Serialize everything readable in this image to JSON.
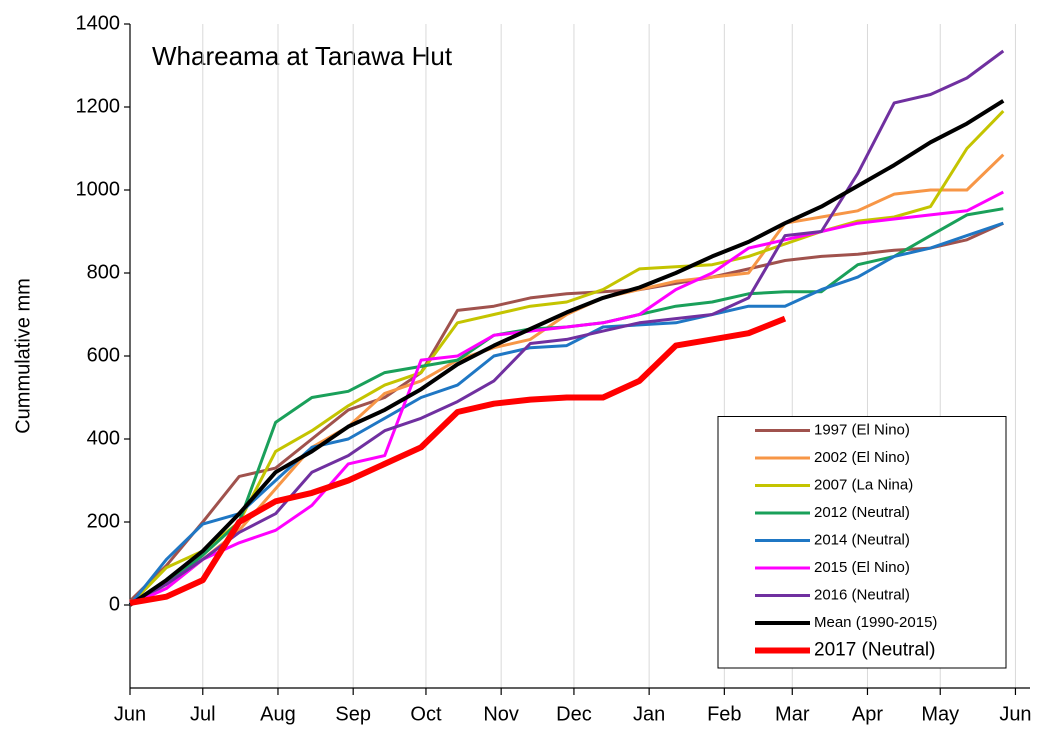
{
  "chart_data": {
    "type": "line",
    "title": "Whareama at Tanawa Hut",
    "y_label": "Cummulative mm",
    "x": [
      0,
      15,
      30,
      45,
      60,
      75,
      90,
      105,
      120,
      135,
      150,
      165,
      180,
      195,
      210,
      225,
      240,
      255,
      270,
      285,
      300,
      315,
      330,
      345,
      360
    ],
    "xlim": [
      0,
      371
    ],
    "xticks": [
      {
        "value": 0,
        "label": "Jun"
      },
      {
        "value": 30,
        "label": "Jul"
      },
      {
        "value": 61,
        "label": "Aug"
      },
      {
        "value": 92,
        "label": "Sep"
      },
      {
        "value": 122,
        "label": "Oct"
      },
      {
        "value": 153,
        "label": "Nov"
      },
      {
        "value": 183,
        "label": "Dec"
      },
      {
        "value": 214,
        "label": "Jan"
      },
      {
        "value": 245,
        "label": "Feb"
      },
      {
        "value": 273,
        "label": "Mar"
      },
      {
        "value": 304,
        "label": "Apr"
      },
      {
        "value": 334,
        "label": "May"
      },
      {
        "value": 365,
        "label": "Jun"
      }
    ],
    "ylim": [
      -200,
      1400
    ],
    "yticks": [
      0,
      200,
      400,
      600,
      800,
      1000,
      1200,
      1400
    ],
    "grid": "x",
    "legend": "lower right",
    "series": [
      {
        "name": "1997 (El Nino)",
        "color": "#a0524d",
        "line_width": 3,
        "values": [
          10,
          95,
          200,
          310,
          330,
          400,
          470,
          500,
          560,
          710,
          720,
          740,
          750,
          755,
          760,
          775,
          790,
          810,
          830,
          840,
          845,
          855,
          860,
          880,
          920
        ]
      },
      {
        "name": "2002 (El Nino)",
        "color": "#f79646",
        "line_width": 3,
        "values": [
          0,
          40,
          110,
          180,
          280,
          380,
          430,
          510,
          540,
          590,
          620,
          640,
          700,
          740,
          760,
          780,
          790,
          800,
          920,
          935,
          950,
          990,
          1000,
          1000,
          1085
        ]
      },
      {
        "name": "2007 (La Nina)",
        "color": "#c4c400",
        "line_width": 3,
        "values": [
          0,
          90,
          130,
          200,
          370,
          420,
          480,
          530,
          560,
          680,
          700,
          720,
          730,
          760,
          810,
          815,
          820,
          840,
          870,
          900,
          925,
          935,
          960,
          1100,
          1190
        ]
      },
      {
        "name": "2012 (Neutral)",
        "color": "#1aa05a",
        "line_width": 3,
        "values": [
          0,
          50,
          120,
          200,
          440,
          500,
          515,
          560,
          575,
          590,
          650,
          665,
          670,
          680,
          700,
          720,
          730,
          750,
          755,
          755,
          820,
          840,
          890,
          940,
          955
        ]
      },
      {
        "name": "2014 (Neutral)",
        "color": "#1f77c4",
        "line_width": 3,
        "values": [
          0,
          110,
          195,
          220,
          300,
          380,
          400,
          450,
          500,
          530,
          600,
          620,
          625,
          670,
          675,
          680,
          700,
          720,
          720,
          760,
          790,
          840,
          860,
          890,
          920
        ]
      },
      {
        "name": "2015 (El Nino)",
        "color": "#ff00ff",
        "line_width": 3,
        "values": [
          0,
          40,
          110,
          150,
          180,
          240,
          340,
          360,
          590,
          600,
          650,
          660,
          670,
          680,
          700,
          760,
          800,
          860,
          880,
          900,
          920,
          930,
          940,
          950,
          995
        ]
      },
      {
        "name": "2016 (Neutral)",
        "color": "#7030a0",
        "line_width": 3,
        "values": [
          5,
          50,
          110,
          175,
          220,
          320,
          360,
          420,
          450,
          490,
          540,
          630,
          640,
          660,
          680,
          690,
          700,
          740,
          890,
          900,
          1040,
          1210,
          1230,
          1270,
          1335
        ]
      },
      {
        "name": "Mean (1990-2015)",
        "color": "#000000",
        "line_width": 4,
        "values": [
          0,
          60,
          130,
          220,
          320,
          370,
          430,
          470,
          520,
          580,
          625,
          665,
          705,
          740,
          765,
          800,
          840,
          875,
          920,
          960,
          1010,
          1060,
          1115,
          1160,
          1215
        ]
      },
      {
        "name": "2017 (Neutral)",
        "color": "#ff0000",
        "line_width": 6,
        "values": [
          5,
          20,
          60,
          200,
          250,
          270,
          300,
          340,
          380,
          465,
          485,
          495,
          500,
          500,
          540,
          625,
          640,
          655,
          690,
          null,
          null,
          null,
          null,
          null,
          null
        ]
      }
    ]
  }
}
